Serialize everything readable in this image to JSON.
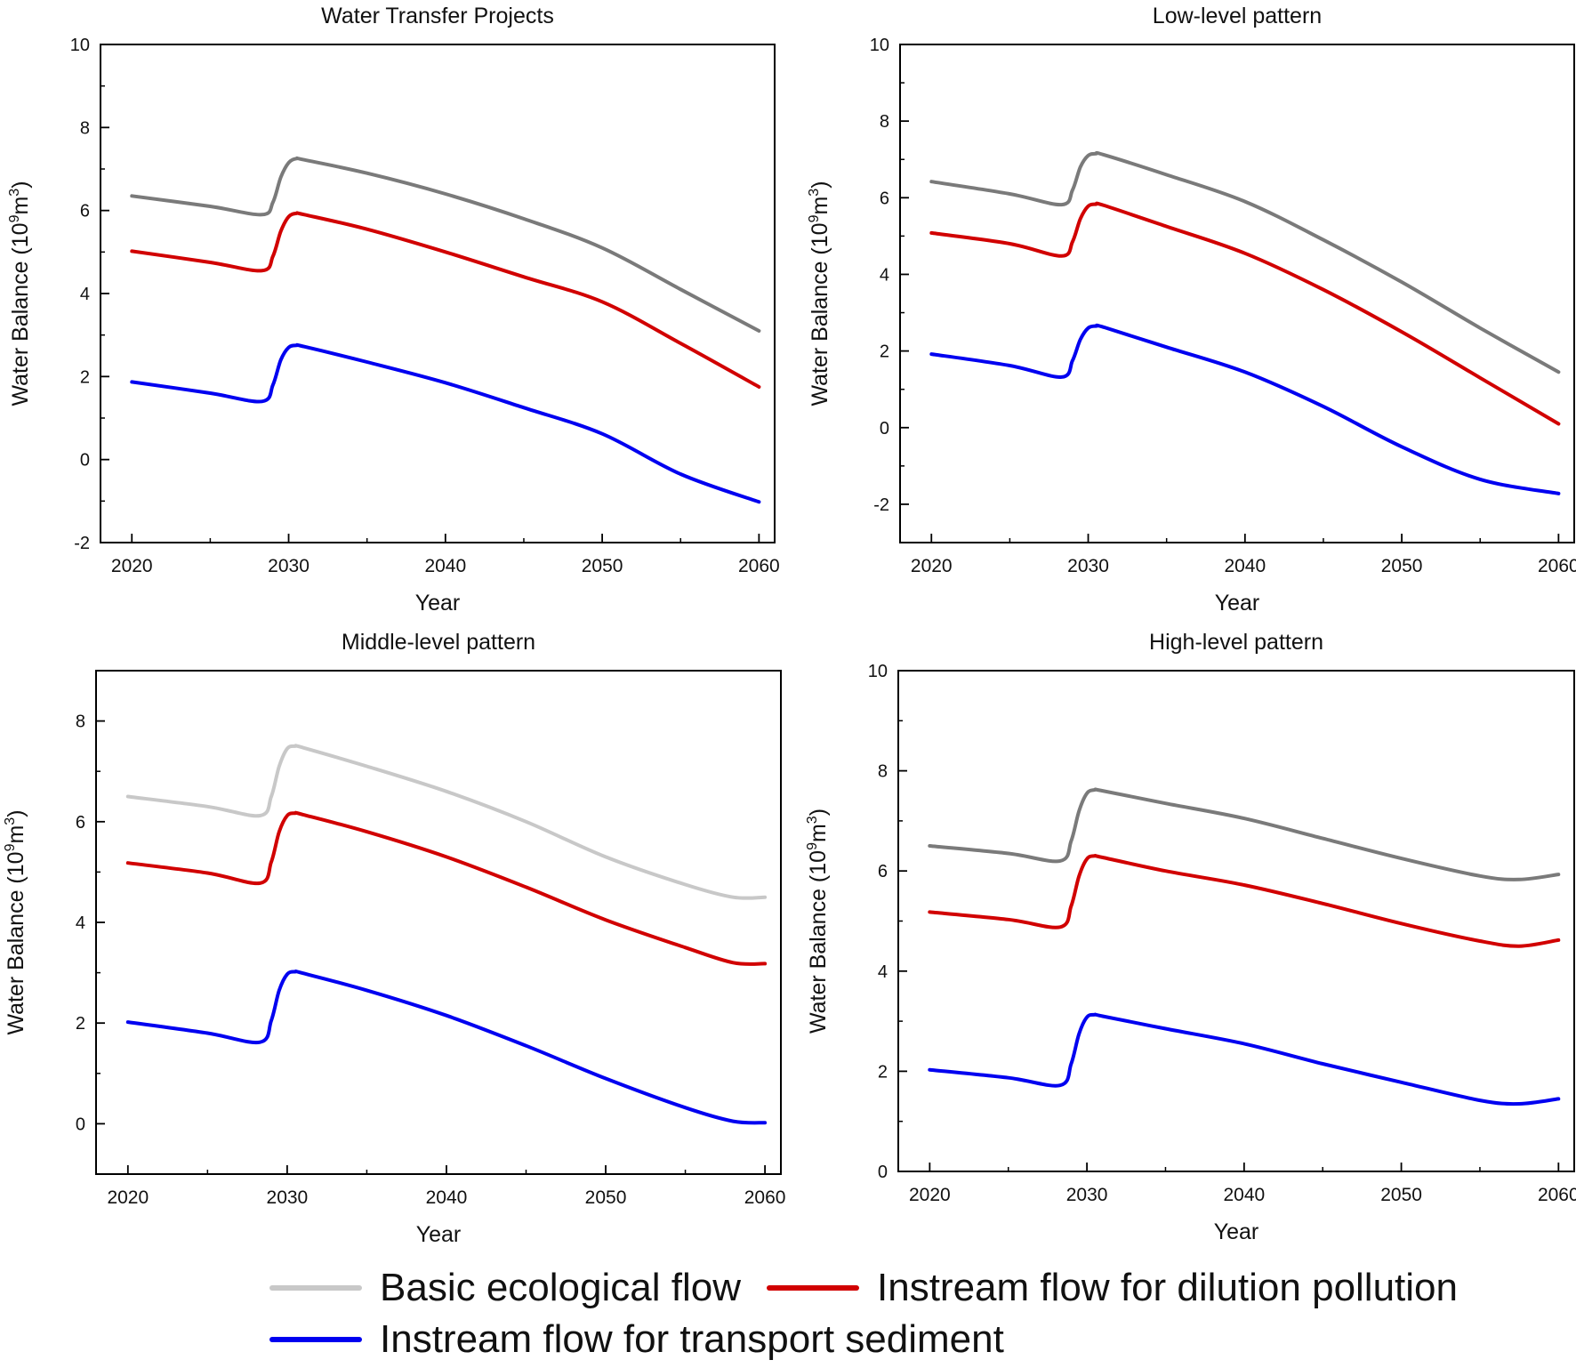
{
  "legend": [
    {
      "label": "Basic ecological flow",
      "color": "#c8c8c8"
    },
    {
      "label": "Instream flow for dilution pollution",
      "color": "#d10000"
    },
    {
      "label": "Instream flow for transport sediment",
      "color": "#0000f0"
    }
  ],
  "chart_data": [
    {
      "type": "line",
      "title": "Water Transfer Projects",
      "xlabel": "Year",
      "ylabel": "Water Balance (10^9 m^3)",
      "ylabel_base": "Water Balance (10",
      "ylabel_exp1": "9",
      "ylabel_mid": "m",
      "ylabel_exp2": "3",
      "ylabel_end": ")",
      "xlim": [
        2018,
        2061
      ],
      "ylim": [
        -2,
        10
      ],
      "xticks": [
        2020,
        2030,
        2040,
        2050,
        2060
      ],
      "yticks": [
        -2,
        0,
        2,
        4,
        6,
        8,
        10
      ],
      "series": [
        {
          "name": "Basic ecological flow",
          "color": "#7a7a7a",
          "x": [
            2020,
            2025,
            2028.3,
            2029,
            2029.5,
            2030,
            2030.5,
            2031,
            2035,
            2040,
            2045,
            2050,
            2055,
            2060
          ],
          "y": [
            6.35,
            6.1,
            5.9,
            6.2,
            6.8,
            7.15,
            7.25,
            7.22,
            6.9,
            6.4,
            5.8,
            5.1,
            4.1,
            3.1
          ]
        },
        {
          "name": "Instream flow for dilution pollution",
          "color": "#d10000",
          "x": [
            2020,
            2025,
            2028.3,
            2029,
            2029.5,
            2030,
            2030.5,
            2031,
            2035,
            2040,
            2045,
            2050,
            2055,
            2060
          ],
          "y": [
            5.02,
            4.75,
            4.55,
            4.9,
            5.5,
            5.85,
            5.93,
            5.9,
            5.55,
            5.0,
            4.4,
            3.8,
            2.8,
            1.75
          ]
        },
        {
          "name": "Instream flow for transport sediment",
          "color": "#0000f0",
          "x": [
            2020,
            2025,
            2028.3,
            2029,
            2029.5,
            2030,
            2030.5,
            2031,
            2035,
            2040,
            2045,
            2050,
            2055,
            2060
          ],
          "y": [
            1.87,
            1.6,
            1.4,
            1.8,
            2.4,
            2.7,
            2.75,
            2.72,
            2.35,
            1.85,
            1.25,
            0.62,
            -0.35,
            -1.02
          ]
        }
      ]
    },
    {
      "type": "line",
      "title": "Low-level  pattern",
      "xlabel": "Year",
      "ylabel": "Water Balance (10^9 m^3)",
      "ylabel_base": "Water Balance (10",
      "ylabel_exp1": "9",
      "ylabel_mid": "m",
      "ylabel_exp2": "3",
      "ylabel_end": ")",
      "xlim": [
        2018,
        2061
      ],
      "ylim": [
        -3,
        10
      ],
      "xticks": [
        2020,
        2030,
        2040,
        2050,
        2060
      ],
      "yticks": [
        -2,
        0,
        2,
        4,
        6,
        8,
        10
      ],
      "series": [
        {
          "name": "Basic ecological flow",
          "color": "#7a7a7a",
          "x": [
            2020,
            2025,
            2028.3,
            2029,
            2029.5,
            2030,
            2030.5,
            2031,
            2035,
            2040,
            2045,
            2050,
            2055,
            2060
          ],
          "y": [
            6.42,
            6.1,
            5.82,
            6.2,
            6.8,
            7.1,
            7.15,
            7.12,
            6.6,
            5.9,
            4.9,
            3.8,
            2.6,
            1.45
          ]
        },
        {
          "name": "Instream flow for dilution pollution",
          "color": "#d10000",
          "x": [
            2020,
            2025,
            2028.3,
            2029,
            2029.5,
            2030,
            2030.5,
            2031,
            2035,
            2040,
            2045,
            2050,
            2055,
            2060
          ],
          "y": [
            5.08,
            4.8,
            4.48,
            4.85,
            5.45,
            5.78,
            5.83,
            5.8,
            5.25,
            4.55,
            3.6,
            2.5,
            1.3,
            0.1
          ]
        },
        {
          "name": "Instream flow for transport sediment",
          "color": "#0000f0",
          "x": [
            2020,
            2025,
            2028.3,
            2029,
            2029.5,
            2030,
            2030.5,
            2031,
            2035,
            2040,
            2045,
            2050,
            2055,
            2060
          ],
          "y": [
            1.92,
            1.62,
            1.32,
            1.75,
            2.3,
            2.6,
            2.65,
            2.62,
            2.1,
            1.45,
            0.55,
            -0.5,
            -1.35,
            -1.72
          ]
        }
      ]
    },
    {
      "type": "line",
      "title": "Middle-level  pattern",
      "xlabel": "Year",
      "ylabel": "Water Balance (10^9 m^3)",
      "ylabel_base": "Water Balance (10",
      "ylabel_exp1": "9",
      "ylabel_mid": "m",
      "ylabel_exp2": "3",
      "ylabel_end": ")",
      "xlim": [
        2018,
        2061
      ],
      "ylim": [
        -1,
        9
      ],
      "xticks": [
        2020,
        2030,
        2040,
        2050,
        2060
      ],
      "yticks": [
        0,
        2,
        4,
        6,
        8
      ],
      "series": [
        {
          "name": "Basic ecological flow",
          "color": "#c8c8c8",
          "x": [
            2020,
            2025,
            2028.3,
            2029,
            2029.5,
            2030,
            2030.5,
            2031,
            2035,
            2040,
            2045,
            2050,
            2055,
            2058,
            2060
          ],
          "y": [
            6.5,
            6.3,
            6.12,
            6.5,
            7.1,
            7.45,
            7.5,
            7.47,
            7.1,
            6.6,
            6.0,
            5.3,
            4.75,
            4.5,
            4.5
          ]
        },
        {
          "name": "Instream flow for dilution pollution",
          "color": "#d10000",
          "x": [
            2020,
            2025,
            2028.3,
            2029,
            2029.5,
            2030,
            2030.5,
            2031,
            2035,
            2040,
            2045,
            2050,
            2055,
            2058,
            2060
          ],
          "y": [
            5.18,
            4.98,
            4.78,
            5.2,
            5.8,
            6.12,
            6.17,
            6.14,
            5.8,
            5.3,
            4.7,
            4.05,
            3.5,
            3.2,
            3.18
          ]
        },
        {
          "name": "Instream flow for transport sediment",
          "color": "#0000f0",
          "x": [
            2020,
            2025,
            2028.3,
            2029,
            2029.5,
            2030,
            2030.5,
            2031,
            2035,
            2040,
            2045,
            2050,
            2055,
            2058,
            2060
          ],
          "y": [
            2.02,
            1.8,
            1.62,
            2.05,
            2.65,
            2.97,
            3.02,
            2.99,
            2.65,
            2.15,
            1.55,
            0.9,
            0.32,
            0.05,
            0.02
          ]
        }
      ]
    },
    {
      "type": "line",
      "title": "High-level  pattern",
      "xlabel": "Year",
      "ylabel": "Water Balance (10^9 m^3)",
      "ylabel_base": "Water Balance (10",
      "ylabel_exp1": "9",
      "ylabel_mid": "m",
      "ylabel_exp2": "3",
      "ylabel_end": ")",
      "xlim": [
        2018,
        2061
      ],
      "ylim": [
        0,
        10
      ],
      "xticks": [
        2020,
        2030,
        2040,
        2050,
        2060
      ],
      "yticks": [
        0,
        2,
        4,
        6,
        8,
        10
      ],
      "series": [
        {
          "name": "Basic ecological flow",
          "color": "#7a7a7a",
          "x": [
            2020,
            2025,
            2028.3,
            2029,
            2029.5,
            2030,
            2030.5,
            2031,
            2035,
            2040,
            2045,
            2050,
            2055,
            2057.5,
            2060
          ],
          "y": [
            6.5,
            6.35,
            6.2,
            6.6,
            7.2,
            7.55,
            7.62,
            7.6,
            7.35,
            7.05,
            6.65,
            6.25,
            5.9,
            5.83,
            5.93
          ]
        },
        {
          "name": "Instream flow for dilution pollution",
          "color": "#d10000",
          "x": [
            2020,
            2025,
            2028.3,
            2029,
            2029.5,
            2030,
            2030.5,
            2031,
            2035,
            2040,
            2045,
            2050,
            2055,
            2057.5,
            2060
          ],
          "y": [
            5.18,
            5.03,
            4.88,
            5.3,
            5.9,
            6.24,
            6.3,
            6.27,
            6.0,
            5.72,
            5.35,
            4.95,
            4.6,
            4.5,
            4.62
          ]
        },
        {
          "name": "Instream flow for transport sediment",
          "color": "#0000f0",
          "x": [
            2020,
            2025,
            2028.3,
            2029,
            2029.5,
            2030,
            2030.5,
            2031,
            2035,
            2040,
            2045,
            2050,
            2055,
            2057.5,
            2060
          ],
          "y": [
            2.03,
            1.87,
            1.72,
            2.15,
            2.75,
            3.08,
            3.13,
            3.1,
            2.85,
            2.55,
            2.15,
            1.78,
            1.42,
            1.35,
            1.45
          ]
        }
      ]
    }
  ]
}
